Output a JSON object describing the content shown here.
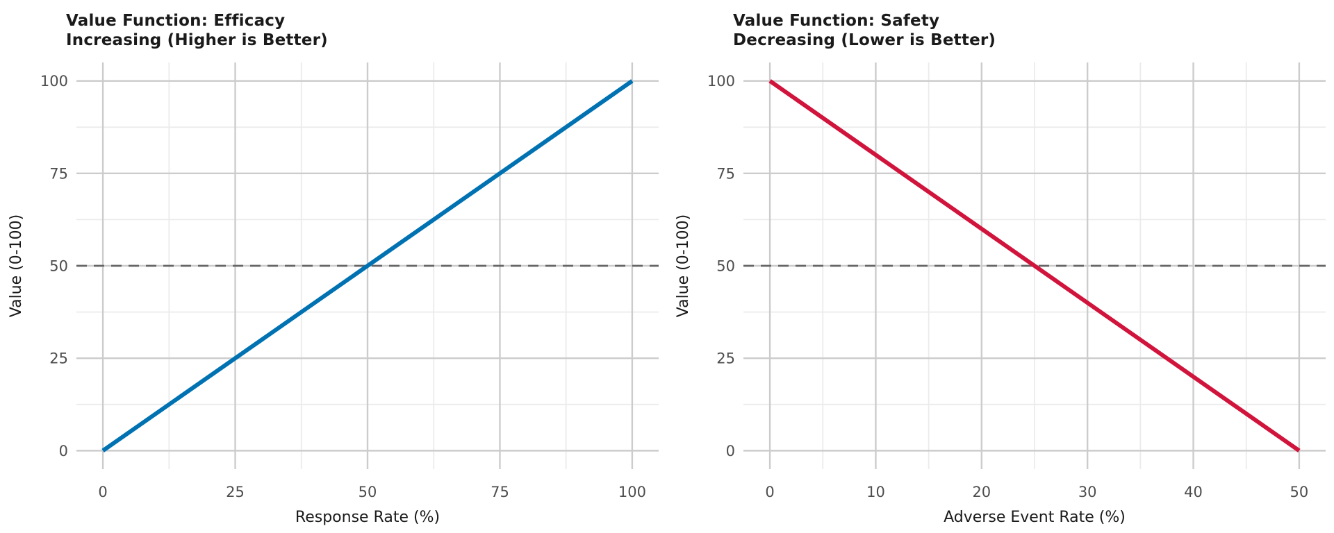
{
  "style": {
    "background": "#ffffff",
    "major_grid_color": "#cccccc",
    "minor_grid_color": "#ebebeb",
    "reference_line_color": "#666666",
    "tick_label_color": "#4d4d4d",
    "axis_label_color": "#1a1a1a",
    "title_color": "#1a1a1a"
  },
  "chart_data": [
    {
      "type": "line",
      "title": "Value Function: Efficacy",
      "subtitle": "Increasing (Higher is Better)",
      "xlabel": "Response Rate (%)",
      "ylabel": "Value (0-100)",
      "x": [
        0,
        100
      ],
      "y": [
        0,
        100
      ],
      "xlim": [
        0,
        100
      ],
      "ylim": [
        0,
        100
      ],
      "xticks": [
        0,
        25,
        50,
        75,
        100
      ],
      "yticks": [
        0,
        25,
        50,
        75,
        100
      ],
      "minor_grid": true,
      "grid": true,
      "legend": false,
      "line_color": "#0072B2",
      "reference_line_y": 50
    },
    {
      "type": "line",
      "title": "Value Function: Safety",
      "subtitle": "Decreasing (Lower is Better)",
      "xlabel": "Adverse Event Rate (%)",
      "ylabel": "Value (0-100)",
      "x": [
        0,
        50
      ],
      "y": [
        100,
        0
      ],
      "xlim": [
        0,
        50
      ],
      "ylim": [
        0,
        100
      ],
      "xticks": [
        0,
        10,
        20,
        30,
        40,
        50
      ],
      "yticks": [
        0,
        25,
        50,
        75,
        100
      ],
      "minor_grid": true,
      "grid": true,
      "legend": false,
      "line_color": "#D0143C",
      "reference_line_y": 50
    }
  ]
}
